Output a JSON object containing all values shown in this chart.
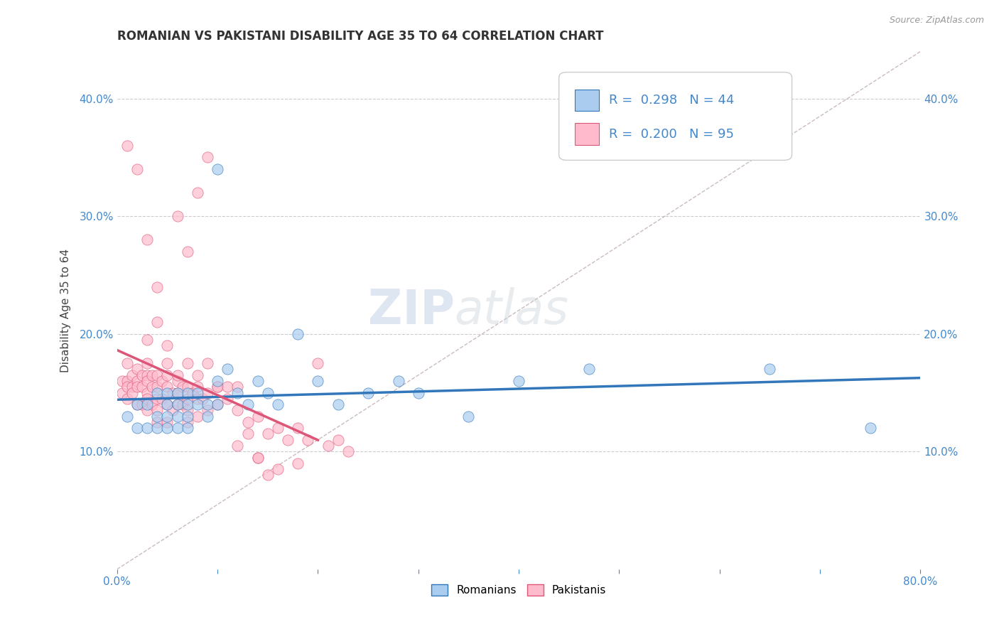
{
  "title": "ROMANIAN VS PAKISTANI DISABILITY AGE 35 TO 64 CORRELATION CHART",
  "source": "Source: ZipAtlas.com",
  "ylabel": "Disability Age 35 to 64",
  "xlim": [
    0.0,
    0.8
  ],
  "ylim": [
    0.0,
    0.44
  ],
  "xticks": [
    0.0,
    0.1,
    0.2,
    0.3,
    0.4,
    0.5,
    0.6,
    0.7,
    0.8
  ],
  "yticks": [
    0.0,
    0.1,
    0.2,
    0.3,
    0.4
  ],
  "blue_color": "#AACCEE",
  "pink_color": "#FFBBCC",
  "blue_line_color": "#3377BB",
  "pink_line_color": "#DD5577",
  "ref_line_color": "#CCBBBB",
  "legend_label_blue": "Romanians",
  "legend_label_pink": "Pakistanis",
  "watermark_zip": "ZIP",
  "watermark_atlas": "atlas",
  "blue_x": [
    0.01,
    0.02,
    0.02,
    0.03,
    0.03,
    0.04,
    0.04,
    0.04,
    0.05,
    0.05,
    0.05,
    0.05,
    0.06,
    0.06,
    0.06,
    0.06,
    0.07,
    0.07,
    0.07,
    0.07,
    0.08,
    0.08,
    0.09,
    0.09,
    0.1,
    0.1,
    0.11,
    0.12,
    0.13,
    0.14,
    0.15,
    0.16,
    0.18,
    0.2,
    0.22,
    0.25,
    0.28,
    0.3,
    0.35,
    0.4,
    0.47,
    0.65,
    0.75,
    0.1
  ],
  "blue_y": [
    0.13,
    0.14,
    0.12,
    0.14,
    0.12,
    0.13,
    0.15,
    0.12,
    0.15,
    0.14,
    0.13,
    0.12,
    0.15,
    0.14,
    0.13,
    0.12,
    0.15,
    0.14,
    0.13,
    0.12,
    0.15,
    0.14,
    0.14,
    0.13,
    0.16,
    0.14,
    0.17,
    0.15,
    0.14,
    0.16,
    0.15,
    0.14,
    0.2,
    0.16,
    0.14,
    0.15,
    0.16,
    0.15,
    0.13,
    0.16,
    0.17,
    0.17,
    0.12,
    0.34
  ],
  "pink_x": [
    0.005,
    0.005,
    0.01,
    0.01,
    0.01,
    0.01,
    0.015,
    0.015,
    0.015,
    0.02,
    0.02,
    0.02,
    0.02,
    0.025,
    0.025,
    0.025,
    0.03,
    0.03,
    0.03,
    0.03,
    0.03,
    0.03,
    0.035,
    0.035,
    0.035,
    0.04,
    0.04,
    0.04,
    0.04,
    0.04,
    0.045,
    0.045,
    0.05,
    0.05,
    0.05,
    0.05,
    0.055,
    0.055,
    0.06,
    0.06,
    0.06,
    0.065,
    0.065,
    0.07,
    0.07,
    0.07,
    0.07,
    0.075,
    0.08,
    0.08,
    0.08,
    0.085,
    0.09,
    0.09,
    0.1,
    0.1,
    0.11,
    0.12,
    0.13,
    0.14,
    0.15,
    0.16,
    0.17,
    0.18,
    0.19,
    0.2,
    0.21,
    0.22,
    0.23,
    0.14,
    0.16,
    0.18,
    0.1,
    0.12,
    0.05,
    0.06,
    0.07,
    0.03,
    0.04,
    0.08,
    0.09,
    0.11,
    0.13,
    0.14,
    0.15,
    0.06,
    0.07,
    0.08,
    0.09,
    0.01,
    0.02,
    0.03,
    0.04,
    0.05,
    0.12
  ],
  "pink_y": [
    0.16,
    0.15,
    0.175,
    0.16,
    0.155,
    0.145,
    0.165,
    0.155,
    0.15,
    0.17,
    0.16,
    0.155,
    0.14,
    0.165,
    0.155,
    0.14,
    0.175,
    0.165,
    0.16,
    0.15,
    0.145,
    0.135,
    0.165,
    0.155,
    0.14,
    0.165,
    0.155,
    0.145,
    0.135,
    0.125,
    0.16,
    0.145,
    0.165,
    0.155,
    0.14,
    0.125,
    0.15,
    0.135,
    0.16,
    0.15,
    0.14,
    0.155,
    0.14,
    0.155,
    0.145,
    0.135,
    0.125,
    0.15,
    0.155,
    0.145,
    0.13,
    0.145,
    0.15,
    0.135,
    0.155,
    0.14,
    0.145,
    0.135,
    0.125,
    0.13,
    0.115,
    0.12,
    0.11,
    0.12,
    0.11,
    0.175,
    0.105,
    0.11,
    0.1,
    0.095,
    0.085,
    0.09,
    0.155,
    0.105,
    0.175,
    0.165,
    0.175,
    0.195,
    0.21,
    0.165,
    0.175,
    0.155,
    0.115,
    0.095,
    0.08,
    0.3,
    0.27,
    0.32,
    0.35,
    0.36,
    0.34,
    0.28,
    0.24,
    0.19,
    0.155
  ],
  "title_fontsize": 12,
  "axis_label_fontsize": 11,
  "tick_fontsize": 11,
  "legend_fontsize": 13
}
